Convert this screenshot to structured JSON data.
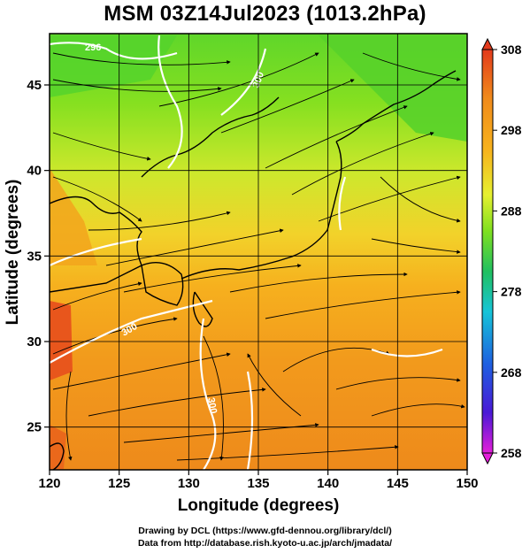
{
  "title": "MSM 03Z14Jul2023 (1013.2hPa)",
  "map": {
    "xlabel": "Longitude (degrees)",
    "ylabel": "Latitude  (degrees)",
    "lon_range": [
      120,
      150
    ],
    "lat_range": [
      22.5,
      48
    ],
    "lon_ticks": [
      "120",
      "125",
      "130",
      "135",
      "140",
      "145",
      "150"
    ],
    "lat_ticks": [
      "25",
      "30",
      "35",
      "40",
      "45"
    ],
    "grid": true,
    "contour_labels": [
      "296",
      "300",
      "300",
      "300"
    ]
  },
  "colorbar": {
    "ticks": [
      "308",
      "298",
      "288",
      "278",
      "268",
      "258"
    ],
    "range": [
      258,
      308
    ],
    "colors": [
      "#e31ed9",
      "#4a19d6",
      "#1e5fe0",
      "#16c4d8",
      "#20c060",
      "#7fe020",
      "#e6f030",
      "#f7b31d",
      "#f08a1c",
      "#e33a1c"
    ]
  },
  "footer": {
    "line1": "Drawing by DCL (https://www.gfd-dennou.org/library/dcl/)",
    "line2": "Data from http://database.rish.kyoto-u.ac.jp/arch/jmadata/"
  }
}
